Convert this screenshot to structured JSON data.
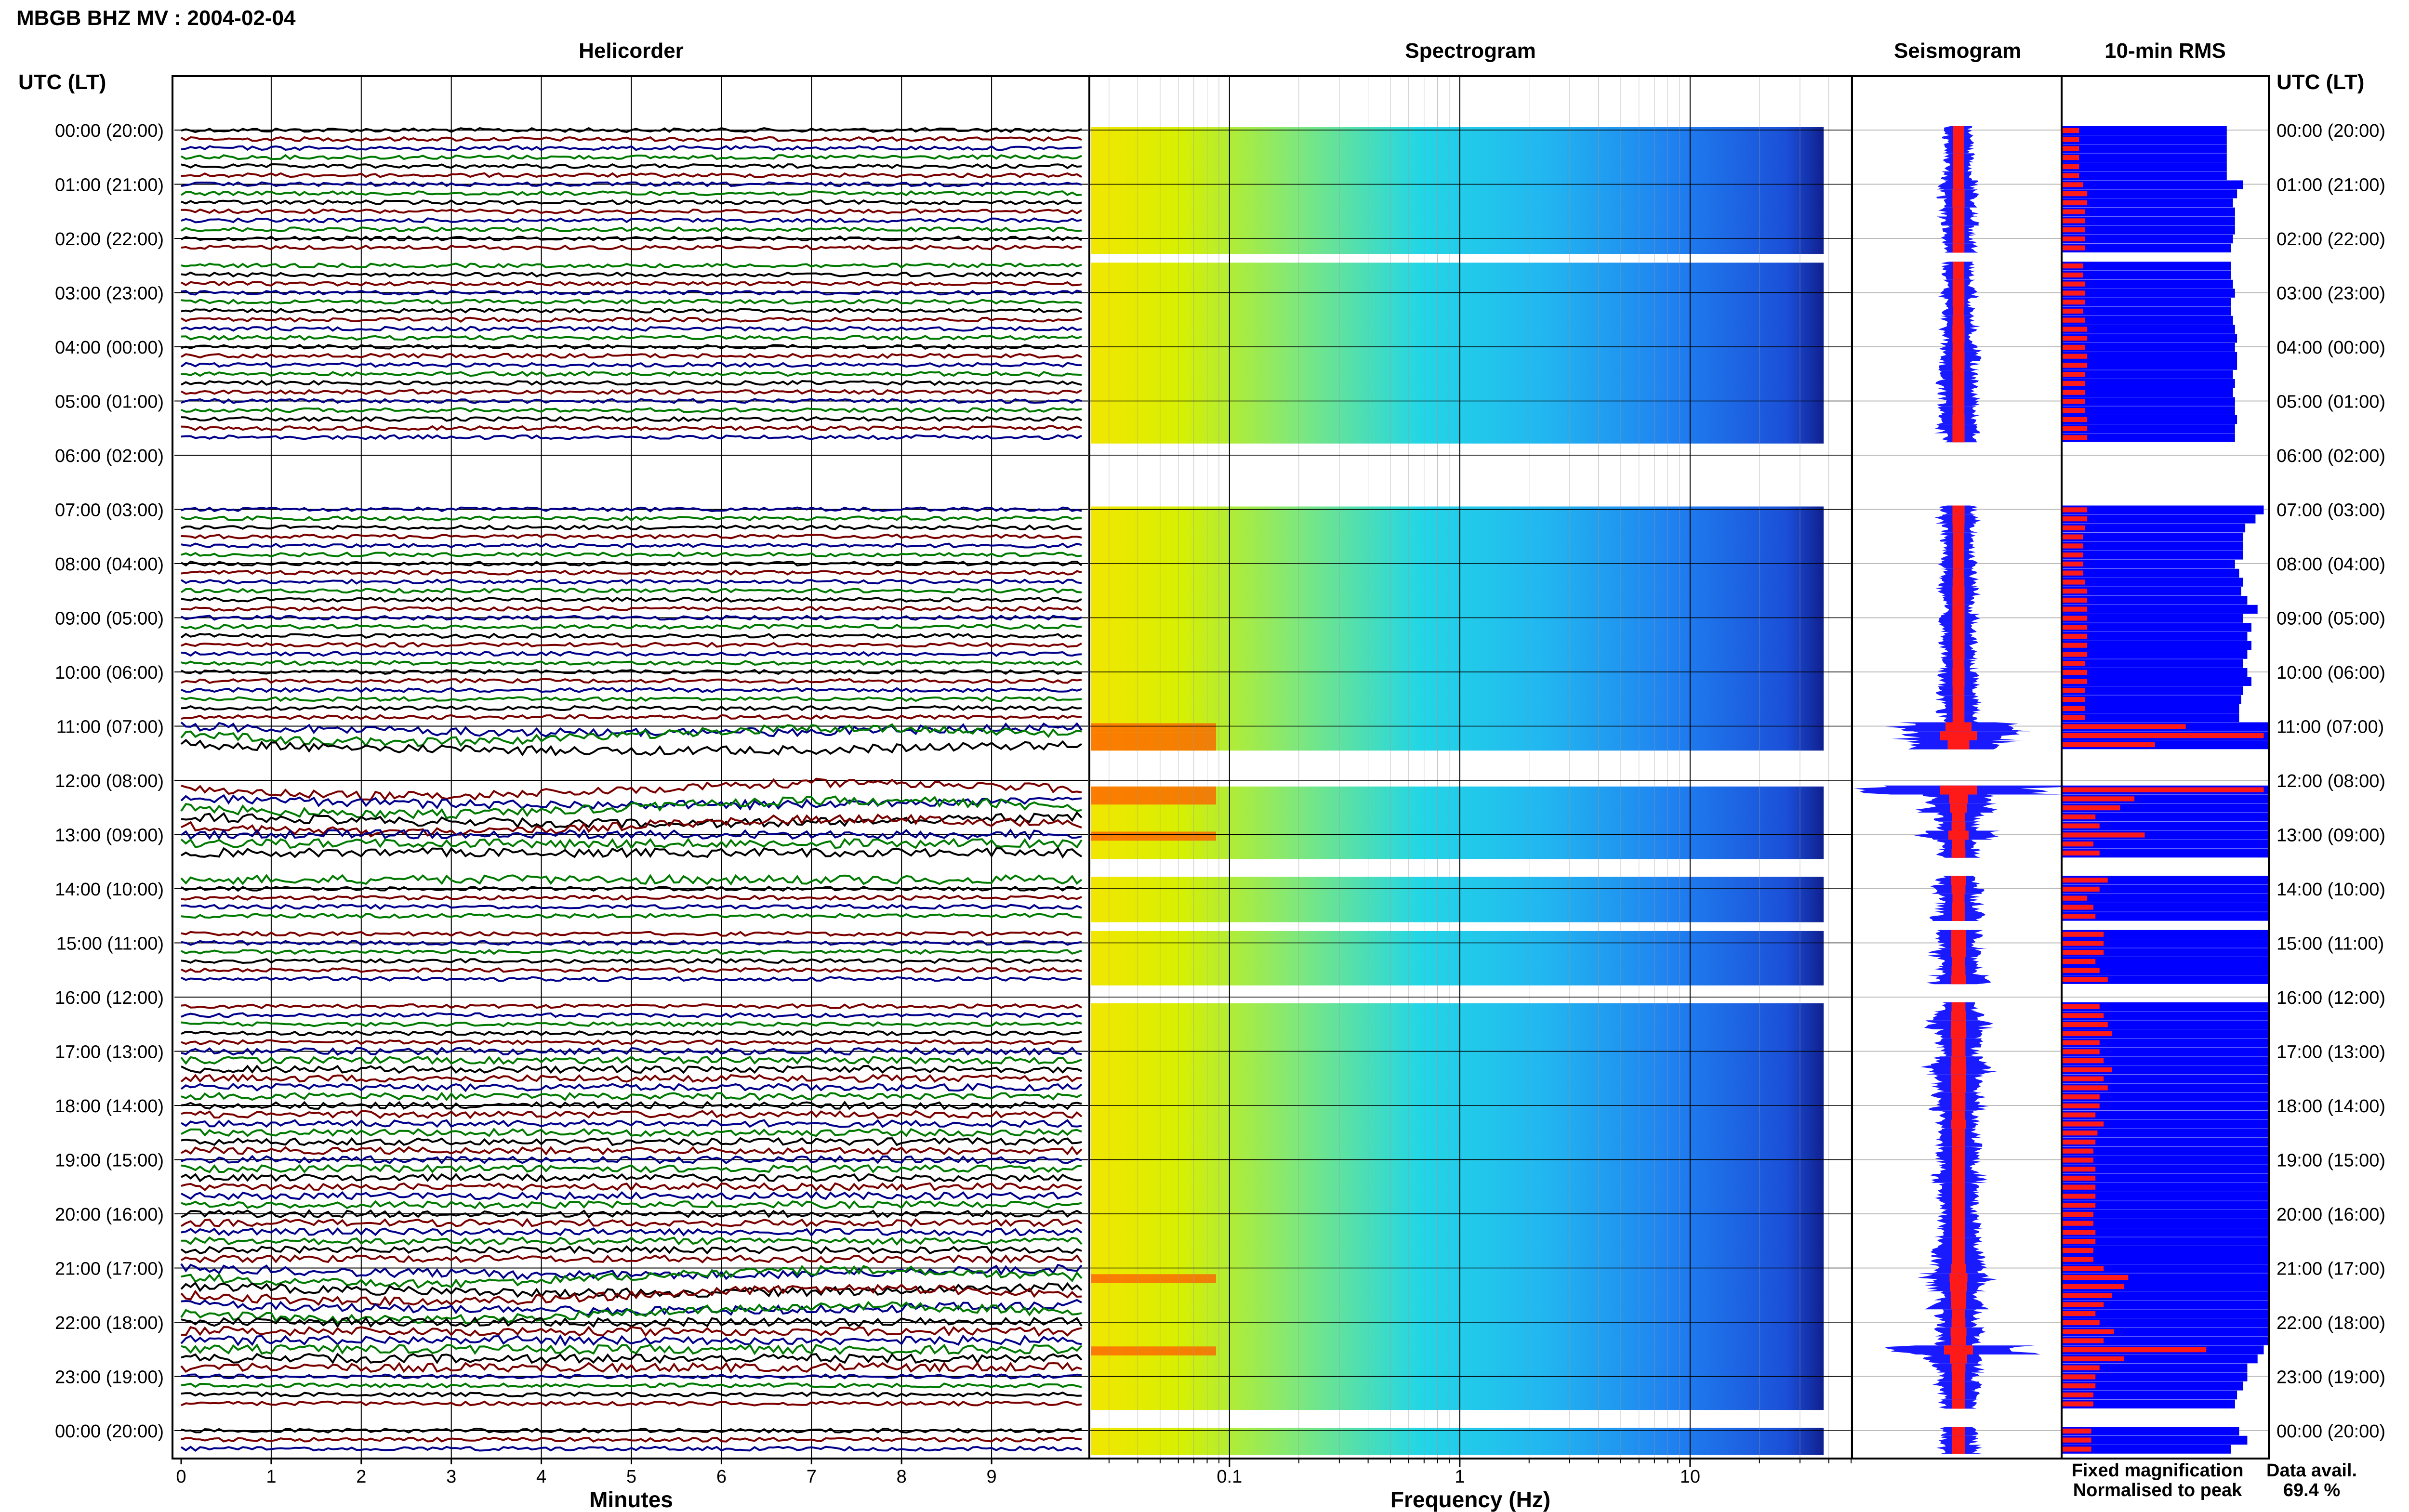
{
  "header": {
    "title": "MBGB BHZ MV : 2004-02-04"
  },
  "panels": {
    "helicorder": "Helicorder",
    "spectrogram": "Spectrogram",
    "seismogram": "Seismogram",
    "rms": "10-min RMS"
  },
  "time_axis": {
    "label_left": "UTC (LT)",
    "label_right": "UTC (LT)"
  },
  "legend": {
    "fixed": "Fixed magnification",
    "fixed_color": "#1a1aff",
    "normalised": "Normalised to peak",
    "normalised_color": "#ff1a1a",
    "data_avail_label": "Data avail.",
    "data_avail_value": "69.4 %"
  },
  "colors": {
    "trace_black": "#000000",
    "trace_red": "#7a0000",
    "trace_blue": "#00008b",
    "trace_green": "#007a00",
    "rms_fixed": "#0000ff",
    "rms_norm": "#ff1a1a"
  },
  "chart_data": [
    {
      "type": "line",
      "title": "Helicorder",
      "xlabel": "Minutes",
      "xticks": [
        "0",
        "1",
        "2",
        "3",
        "4",
        "5",
        "6",
        "7",
        "8",
        "9"
      ],
      "xlim": [
        0,
        10
      ],
      "y_hour_labels": [
        "00:00 (20:00)",
        "01:00 (21:00)",
        "02:00 (22:00)",
        "03:00 (23:00)",
        "04:00 (00:00)",
        "05:00 (01:00)",
        "06:00 (02:00)",
        "07:00 (03:00)",
        "08:00 (04:00)",
        "09:00 (05:00)",
        "10:00 (06:00)",
        "11:00 (07:00)",
        "12:00 (08:00)",
        "13:00 (09:00)",
        "14:00 (10:00)",
        "15:00 (11:00)",
        "16:00 (12:00)",
        "17:00 (13:00)",
        "18:00 (14:00)",
        "19:00 (15:00)",
        "20:00 (16:00)",
        "21:00 (17:00)",
        "22:00 (18:00)",
        "23:00 (19:00)",
        "00:00 (20:00)"
      ],
      "trace_color_cycle": [
        "black",
        "red",
        "blue",
        "green"
      ],
      "trace_segments_10min_present": [
        [
          1,
          1,
          1,
          1,
          1,
          1
        ],
        [
          1,
          1,
          1,
          1,
          1,
          1
        ],
        [
          1,
          1,
          0,
          1,
          1,
          1
        ],
        [
          1,
          1,
          1,
          1,
          1,
          1
        ],
        [
          1,
          1,
          1,
          1,
          1,
          1
        ],
        [
          1,
          1,
          1,
          1,
          1,
          0
        ],
        [
          0,
          0,
          0,
          0,
          0,
          0
        ],
        [
          1,
          1,
          1,
          1,
          1,
          1
        ],
        [
          1,
          1,
          1,
          1,
          1,
          1
        ],
        [
          1,
          1,
          1,
          1,
          1,
          1
        ],
        [
          1,
          1,
          1,
          1,
          1,
          1
        ],
        [
          1,
          1,
          1,
          0,
          0,
          0
        ],
        [
          0,
          1,
          1,
          1,
          1,
          1
        ],
        [
          1,
          1,
          1,
          0,
          0,
          1
        ],
        [
          1,
          1,
          1,
          1,
          0,
          1
        ],
        [
          1,
          1,
          1,
          1,
          1,
          0
        ],
        [
          0,
          1,
          1,
          1,
          1,
          1
        ],
        [
          1,
          1,
          1,
          1,
          1,
          1
        ],
        [
          1,
          1,
          1,
          1,
          1,
          1
        ],
        [
          1,
          1,
          1,
          1,
          1,
          1
        ],
        [
          1,
          1,
          1,
          1,
          1,
          1
        ],
        [
          1,
          1,
          1,
          1,
          1,
          1
        ],
        [
          1,
          1,
          1,
          1,
          1,
          1
        ],
        [
          1,
          1,
          1,
          1,
          0,
          0
        ],
        [
          1,
          1,
          1,
          0,
          0,
          0
        ]
      ]
    },
    {
      "type": "heatmap",
      "title": "Spectrogram",
      "xlabel": "Frequency (Hz)",
      "xscale": "log",
      "xticks": [
        "0.1",
        "1",
        "10"
      ],
      "xlim": [
        0.025,
        50
      ],
      "colormap": "jet (red high, blue low)"
    },
    {
      "type": "line",
      "title": "Seismogram",
      "series": [
        {
          "name": "Fixed magnification",
          "color": "#1a1aff"
        },
        {
          "name": "Normalised to peak",
          "color": "#ff1a1a"
        }
      ]
    },
    {
      "type": "bar",
      "title": "10-min RMS",
      "series": [
        {
          "name": "Fixed magnification",
          "color": "#0000ff"
        },
        {
          "name": "Normalised to peak",
          "color": "#ff1a1a"
        }
      ],
      "note": "one bar pair per 10-minute segment; relative lengths 0–1",
      "fixed_rel": [
        [
          0.8,
          0.8,
          0.8,
          0.8,
          0.8,
          0.8
        ],
        [
          0.88,
          0.85,
          0.83,
          0.84,
          0.84,
          0.84
        ],
        [
          0.83,
          0.82,
          0,
          0.82,
          0.82,
          0.83
        ],
        [
          0.84,
          0.82,
          0.82,
          0.83,
          0.84,
          0.85
        ],
        [
          0.84,
          0.85,
          0.85,
          0.83,
          0.84,
          0.83
        ],
        [
          0.84,
          0.84,
          0.85,
          0.84,
          0.84,
          0
        ],
        [
          0,
          0,
          0,
          0,
          0,
          0
        ],
        [
          0.98,
          0.94,
          0.89,
          0.88,
          0.88,
          0.88
        ],
        [
          0.84,
          0.86,
          0.88,
          0.87,
          0.9,
          0.95
        ],
        [
          0.88,
          0.92,
          0.9,
          0.92,
          0.9,
          0.88
        ],
        [
          0.9,
          0.92,
          0.88,
          0.87,
          0.86,
          0.86
        ],
        [
          1,
          1,
          1,
          0,
          0,
          0
        ],
        [
          0,
          1,
          1,
          1,
          1,
          1
        ],
        [
          1,
          1,
          1,
          0,
          0,
          1
        ],
        [
          1,
          1,
          1,
          1,
          0,
          1
        ],
        [
          1,
          1,
          1,
          1,
          1,
          0
        ],
        [
          0,
          1,
          1,
          1,
          1,
          1
        ],
        [
          1,
          1,
          1,
          1,
          1,
          1
        ],
        [
          1,
          1,
          1,
          1,
          1,
          1
        ],
        [
          1,
          1,
          1,
          1,
          1,
          1
        ],
        [
          1,
          1,
          1,
          1,
          1,
          1
        ],
        [
          1,
          1,
          1,
          1,
          1,
          1
        ],
        [
          1,
          1,
          1,
          0.98,
          0.95,
          0.9
        ],
        [
          0.9,
          0.88,
          0.85,
          0.84,
          0,
          0
        ],
        [
          0.86,
          0.9,
          0.82,
          0,
          0,
          0
        ]
      ],
      "norm_rel": [
        [
          0.08,
          0.08,
          0.08,
          0.08,
          0.08,
          0.08
        ],
        [
          0.1,
          0.12,
          0.12,
          0.11,
          0.11,
          0.11
        ],
        [
          0.11,
          0.11,
          0,
          0.1,
          0.1,
          0.11
        ],
        [
          0.11,
          0.11,
          0.1,
          0.11,
          0.12,
          0.12
        ],
        [
          0.11,
          0.12,
          0.12,
          0.11,
          0.11,
          0.11
        ],
        [
          0.11,
          0.11,
          0.12,
          0.12,
          0.12,
          0
        ],
        [
          0,
          0,
          0,
          0,
          0,
          0
        ],
        [
          0.12,
          0.12,
          0.11,
          0.1,
          0.1,
          0.1
        ],
        [
          0.1,
          0.1,
          0.11,
          0.12,
          0.12,
          0.12
        ],
        [
          0.12,
          0.12,
          0.12,
          0.12,
          0.12,
          0.11
        ],
        [
          0.12,
          0.12,
          0.11,
          0.11,
          0.11,
          0.11
        ],
        [
          0.6,
          0.98,
          0.45,
          0,
          0,
          0
        ],
        [
          0,
          0.98,
          0.35,
          0.28,
          0.16,
          0.18
        ],
        [
          0.4,
          0.15,
          0.18,
          0,
          0,
          0.22
        ],
        [
          0.18,
          0.12,
          0.15,
          0.16,
          0,
          0.2
        ],
        [
          0.2,
          0.2,
          0.16,
          0.18,
          0.22,
          0
        ],
        [
          0,
          0.18,
          0.2,
          0.22,
          0.24,
          0.18
        ],
        [
          0.18,
          0.2,
          0.24,
          0.2,
          0.22,
          0.18
        ],
        [
          0.18,
          0.16,
          0.2,
          0.17,
          0.16,
          0.15
        ],
        [
          0.15,
          0.16,
          0.16,
          0.16,
          0.16,
          0.16
        ],
        [
          0.15,
          0.15,
          0.16,
          0.16,
          0.15,
          0.15
        ],
        [
          0.2,
          0.32,
          0.3,
          0.24,
          0.2,
          0.16
        ],
        [
          0.18,
          0.25,
          0.2,
          0.7,
          0.3,
          0.18
        ],
        [
          0.16,
          0.16,
          0.15,
          0.15,
          0,
          0
        ],
        [
          0.14,
          0.14,
          0.14,
          0,
          0,
          0
        ]
      ]
    }
  ]
}
